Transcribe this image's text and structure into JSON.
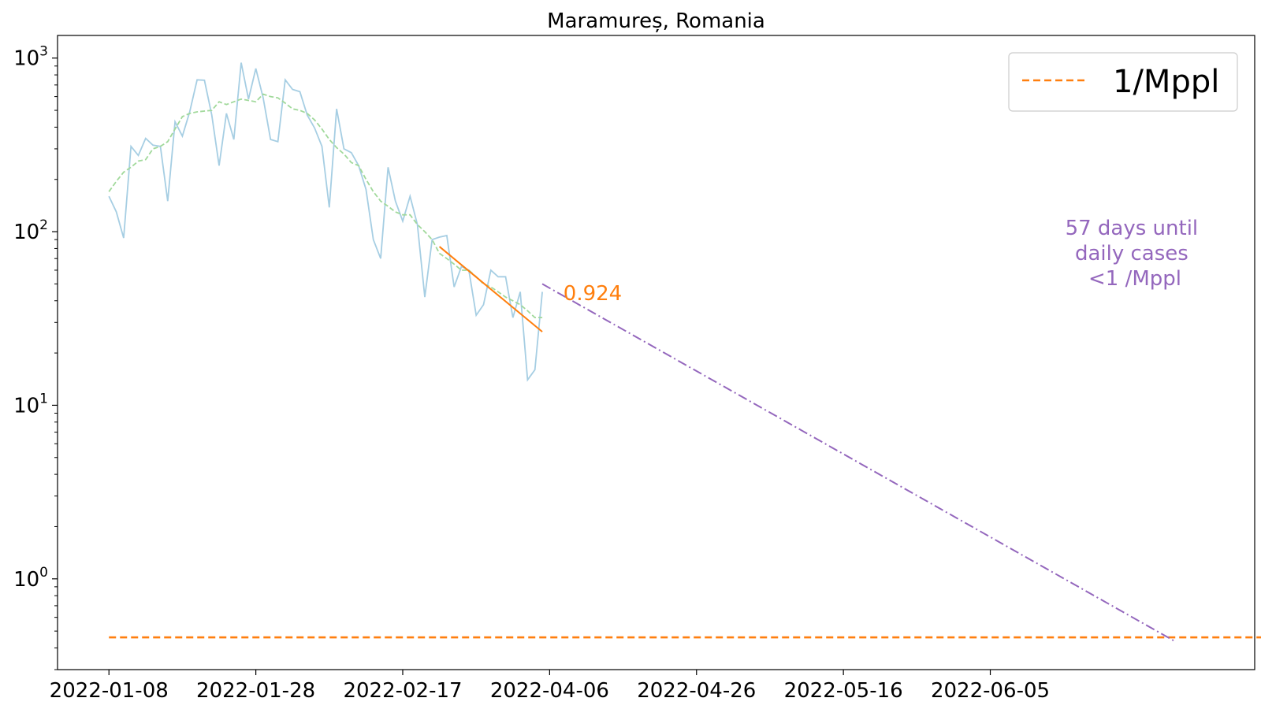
{
  "chart_data": {
    "type": "line",
    "title": "Maramureș, Romania",
    "xlabel": "",
    "ylabel": "",
    "y_scale": "log",
    "grid": false,
    "legend_placement": "top-right",
    "x_range": [
      "2022-01-01",
      "2022-06-13"
    ],
    "y_range": [
      0.3,
      1350
    ],
    "x_tick_labels": [
      "2022-01-08",
      "2022-01-28",
      "2022-02-17",
      "2022-04-06",
      "2022-04-26",
      "2022-05-16",
      "2022-06-05"
    ],
    "y_ticks": [
      {
        "value": 1,
        "base": "10",
        "exponent": "0"
      },
      {
        "value": 10,
        "base": "10",
        "exponent": "1"
      },
      {
        "value": 100,
        "base": "10",
        "exponent": "2"
      },
      {
        "value": 1000,
        "base": "10",
        "exponent": "3"
      }
    ],
    "series": [
      {
        "role": "daily-cases",
        "color": "#a6cee3",
        "style": "solid",
        "start_date": "2022-01-08",
        "values": [
          160,
          130,
          92,
          310,
          275,
          345,
          315,
          310,
          150,
          430,
          355,
          490,
          750,
          745,
          470,
          240,
          480,
          340,
          940,
          580,
          870,
          590,
          340,
          330,
          750,
          660,
          640,
          470,
          395,
          310,
          138,
          510,
          300,
          285,
          240,
          175,
          90,
          70,
          235,
          150,
          115,
          160,
          110,
          42,
          90,
          93,
          95,
          48,
          63,
          60,
          33,
          38,
          60,
          55,
          55,
          32,
          45,
          14,
          16,
          45
        ]
      },
      {
        "role": "rolling-average",
        "color": "#a1d99b",
        "style": "dashed",
        "start_date": "2022-01-08",
        "values": [
          170,
          195,
          220,
          235,
          255,
          260,
          300,
          310,
          330,
          390,
          460,
          480,
          490,
          495,
          500,
          560,
          540,
          560,
          580,
          570,
          560,
          620,
          600,
          590,
          550,
          510,
          500,
          480,
          440,
          390,
          340,
          305,
          280,
          250,
          240,
          200,
          170,
          150,
          140,
          130,
          125,
          125,
          110,
          100,
          90,
          75,
          70,
          65,
          60,
          60,
          55,
          50,
          48,
          45,
          42,
          40,
          38,
          35,
          32,
          32
        ]
      }
    ],
    "fit_line": {
      "color": "#ff7f0e",
      "label": "0.924",
      "start": {
        "date": "2022-02-22",
        "value": 82
      },
      "end": {
        "date": "2022-03-08",
        "value": 26.5
      }
    },
    "projection": {
      "color": "#9467bd",
      "style": "dashdot",
      "start": {
        "date": "2022-03-08",
        "value": 50
      },
      "end": {
        "date": "2022-06-02",
        "value": 0.44
      },
      "annotation": [
        "57 days until",
        "daily cases",
        "<1 /Mppl"
      ]
    },
    "threshold": {
      "color": "#ff7f0e",
      "style": "dashed",
      "value": 0.46,
      "legend_label": "1/Mppl"
    }
  }
}
